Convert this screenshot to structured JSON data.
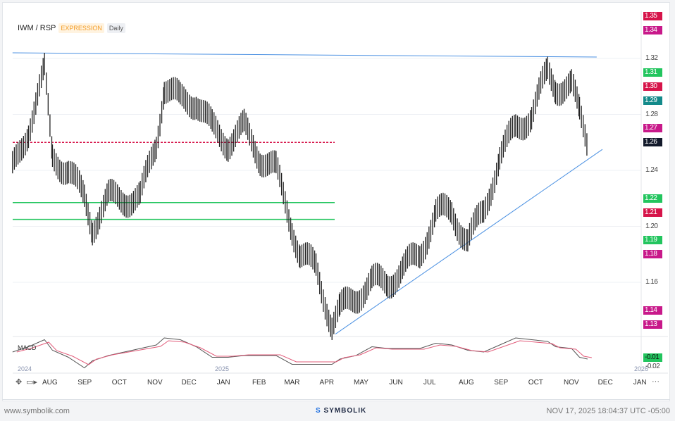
{
  "header": {
    "symbol": "IWM / RSP",
    "badge": "EXPRESSION",
    "interval": "Daily"
  },
  "macd_label": "MACD",
  "footer": {
    "site": "www.symbolik.com",
    "brand": "SYMBOLIK",
    "timestamp": "NOV 17, 2025 18:04:37 UTC -05:00"
  },
  "toolbar": {
    "more": "···"
  },
  "colors": {
    "up_bar": "#222222",
    "trendline": "#4a90e2",
    "support": "#22c55e",
    "resistance": "#d6144a",
    "magenta": "#c8198a",
    "teal": "#138a8a",
    "last": "#131a2b"
  },
  "chart_data": {
    "type": "bar",
    "title": "IWM / RSP",
    "ylim": [
      1.12,
      1.355
    ],
    "y_ticks": [
      "1.32",
      "1.28",
      "1.24",
      "1.20",
      "1.16"
    ],
    "x_ticks": [
      "AUG",
      "SEP",
      "OCT",
      "NOV",
      "DEC",
      "JAN",
      "FEB",
      "MAR",
      "APR",
      "MAY",
      "JUN",
      "JUL",
      "AUG",
      "SEP",
      "OCT",
      "NOV",
      "DEC",
      "JAN"
    ],
    "year_labels": [
      "2024",
      "2025",
      "2026"
    ],
    "series": [
      {
        "dates": [
          "2024-07-01",
          "2024-07-15",
          "2024-07-29",
          "2024-08-05",
          "2024-08-19",
          "2024-09-02",
          "2024-09-09",
          "2024-09-23",
          "2024-10-07",
          "2024-10-21",
          "2024-11-04",
          "2024-11-11",
          "2024-11-25",
          "2024-12-09",
          "2024-12-23",
          "2025-01-06",
          "2025-01-20",
          "2025-02-03",
          "2025-02-17",
          "2025-03-03",
          "2025-03-10",
          "2025-03-24",
          "2025-04-07",
          "2025-04-14",
          "2025-04-28",
          "2025-05-12",
          "2025-05-26",
          "2025-06-09",
          "2025-06-23",
          "2025-07-07",
          "2025-07-21",
          "2025-08-04",
          "2025-08-18",
          "2025-09-01",
          "2025-09-15",
          "2025-09-29",
          "2025-10-13",
          "2025-10-20",
          "2025-11-03",
          "2025-11-10",
          "2025-11-17"
        ],
        "close": [
          1.24,
          1.27,
          1.31,
          1.25,
          1.24,
          1.22,
          1.2,
          1.22,
          1.22,
          1.22,
          1.26,
          1.3,
          1.29,
          1.29,
          1.27,
          1.26,
          1.27,
          1.25,
          1.24,
          1.2,
          1.18,
          1.17,
          1.13,
          1.14,
          1.15,
          1.16,
          1.16,
          1.17,
          1.18,
          1.21,
          1.21,
          1.19,
          1.21,
          1.25,
          1.27,
          1.28,
          1.31,
          1.3,
          1.3,
          1.28,
          1.26
        ]
      }
    ],
    "price_labels": [
      {
        "text": "1.35",
        "color": "#d6144a"
      },
      {
        "text": "1.34",
        "color": "#c8198a"
      },
      {
        "text": "1.31",
        "color": "#22c55e"
      },
      {
        "text": "1.30",
        "color": "#d6144a"
      },
      {
        "text": "1.29",
        "color": "#138a8a"
      },
      {
        "text": "1.27",
        "color": "#c8198a"
      },
      {
        "text": "1.26",
        "color": "#131a2b"
      },
      {
        "text": "1.22",
        "color": "#22c55e"
      },
      {
        "text": "1.21",
        "color": "#d6144a"
      },
      {
        "text": "1.19",
        "color": "#22c55e"
      },
      {
        "text": "1.18",
        "color": "#c8198a"
      },
      {
        "text": "1.14",
        "color": "#c8198a"
      },
      {
        "text": "1.13",
        "color": "#c8198a"
      }
    ],
    "macd": {
      "ticks": [
        "-0.01",
        "-0.02"
      ],
      "current": "-0.01"
    },
    "horizontal_levels": [
      {
        "value": 1.26,
        "type": "resistance"
      },
      {
        "value": 1.205,
        "type": "support"
      },
      {
        "value": 1.217,
        "type": "support"
      }
    ],
    "trendlines": [
      {
        "from": [
          "2024-07-01",
          1.324
        ],
        "to": [
          "2025-11-25",
          1.321
        ]
      },
      {
        "from": [
          "2025-04-10",
          1.123
        ],
        "to": [
          "2025-11-30",
          1.255
        ]
      }
    ]
  }
}
